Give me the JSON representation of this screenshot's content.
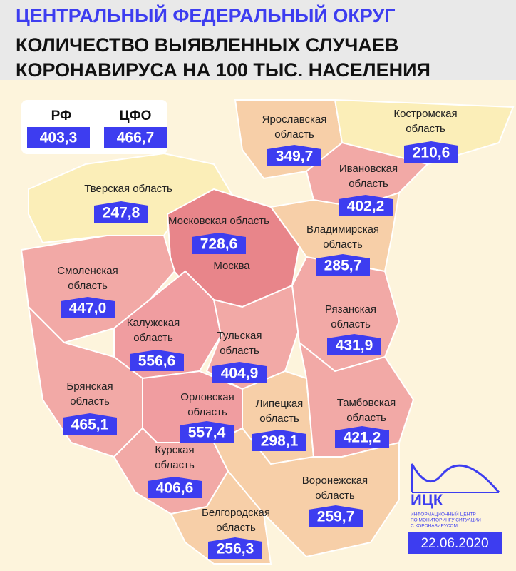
{
  "header": {
    "line1": "ЦЕНТРАЛЬНЫЙ ФЕДЕРАЛЬНЫЙ ОКРУГ",
    "line2": "КОЛИЧЕСТВО ВЫЯВЛЕННЫХ СЛУЧАЕВ",
    "line3": "КОРОНАВИРУСА НА 100 ТЫС. НАСЕЛЕНИЯ"
  },
  "summary": [
    {
      "label": "РФ",
      "value": "403,3"
    },
    {
      "label": "ЦФО",
      "value": "466,7"
    }
  ],
  "regions": [
    {
      "name": [
        "Ярославская",
        "область"
      ],
      "value": "349,7"
    },
    {
      "name": [
        "Костромская",
        "область"
      ],
      "value": "210,6"
    },
    {
      "name": [
        "Ивановская",
        "область"
      ],
      "value": "402,2"
    },
    {
      "name": [
        "Тверская область"
      ],
      "value": "247,8"
    },
    {
      "name": [
        "Московская область"
      ],
      "value": "728,6"
    },
    {
      "name": [
        "Владимирская",
        "область"
      ],
      "value": "285,7"
    },
    {
      "name": [
        "Смоленская",
        "область"
      ],
      "value": "447,0"
    },
    {
      "name": [
        "Рязанская",
        "область"
      ],
      "value": "431,9"
    },
    {
      "name": [
        "Калужская",
        "область"
      ],
      "value": "556,6"
    },
    {
      "name": [
        "Тульская",
        "область"
      ],
      "value": "404,9"
    },
    {
      "name": [
        "Брянская",
        "область"
      ],
      "value": "465,1"
    },
    {
      "name": [
        "Орловская",
        "область"
      ],
      "value": "557,4"
    },
    {
      "name": [
        "Липецкая",
        "область"
      ],
      "value": "298,1"
    },
    {
      "name": [
        "Тамбовская",
        "область"
      ],
      "value": "421,2"
    },
    {
      "name": [
        "Курская",
        "область"
      ],
      "value": "406,6"
    },
    {
      "name": [
        "Воронежская",
        "область"
      ],
      "value": "259,7"
    },
    {
      "name": [
        "Белгородская",
        "область"
      ],
      "value": "256,3"
    }
  ],
  "moscow": "Москва",
  "logo": {
    "abbr": "ИЦК",
    "lines": [
      "ИНФОРМАЦИОННЫЙ ЦЕНТР",
      "ПО МОНИТОРИНГУ СИТУАЦИИ",
      "С КОРОНАВИРУСОМ"
    ]
  },
  "date": "22.06.2020"
}
